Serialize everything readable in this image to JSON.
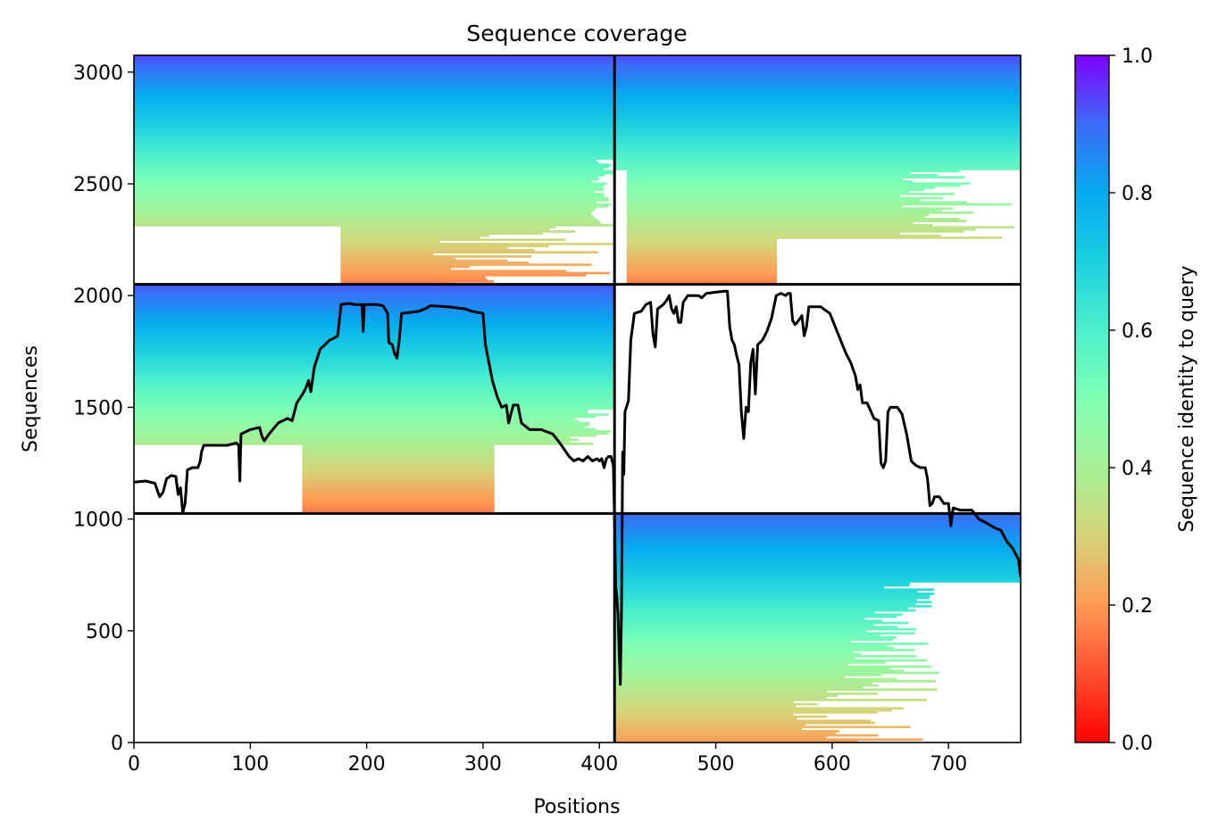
{
  "chart_data": {
    "type": "heatmap",
    "title": "Sequence coverage",
    "xlabel": "Positions",
    "ylabel": "Sequences",
    "xlim": [
      0,
      762
    ],
    "ylim": [
      0,
      3075
    ],
    "x_ticks": [
      0,
      100,
      200,
      300,
      400,
      500,
      600,
      700
    ],
    "y_ticks": [
      0,
      500,
      1000,
      1500,
      2000,
      2500,
      3000
    ],
    "colormap": "rainbow_r",
    "colorbar": {
      "label": "Sequence identity to query",
      "range": [
        0.0,
        1.0
      ],
      "ticks": [
        "0.0",
        "0.2",
        "0.4",
        "0.6",
        "0.8",
        "1.0"
      ]
    },
    "block_divisions": {
      "x_split": 413,
      "y_splits": [
        1025,
        2050
      ]
    },
    "blocks": [
      {
        "x_range": [
          0,
          413
        ],
        "y_range": [
          2050,
          3075
        ],
        "identity_top": 0.93,
        "identity_bottom": 0.17
      },
      {
        "x_range": [
          413,
          762
        ],
        "y_range": [
          2050,
          3075
        ],
        "identity_top": 0.93,
        "identity_bottom": 0.17
      },
      {
        "x_range": [
          0,
          413
        ],
        "y_range": [
          1025,
          2050
        ],
        "identity_top": 0.92,
        "identity_bottom": 0.16
      },
      {
        "x_range": [
          413,
          762
        ],
        "y_range": [
          0,
          1025
        ],
        "identity_top": 0.9,
        "identity_bottom": 0.21
      }
    ],
    "coverage_line": {
      "color": "#000000",
      "points": [
        [
          0,
          1165
        ],
        [
          10,
          1170
        ],
        [
          18,
          1160
        ],
        [
          22,
          1100
        ],
        [
          25,
          1120
        ],
        [
          28,
          1180
        ],
        [
          32,
          1195
        ],
        [
          36,
          1190
        ],
        [
          38,
          1110
        ],
        [
          40,
          1140
        ],
        [
          42,
          1030
        ],
        [
          44,
          1070
        ],
        [
          46,
          1220
        ],
        [
          50,
          1230
        ],
        [
          55,
          1230
        ],
        [
          57,
          1260
        ],
        [
          58,
          1300
        ],
        [
          60,
          1330
        ],
        [
          70,
          1330
        ],
        [
          80,
          1330
        ],
        [
          88,
          1340
        ],
        [
          90,
          1330
        ],
        [
          91,
          1170
        ],
        [
          92,
          1380
        ],
        [
          100,
          1400
        ],
        [
          108,
          1410
        ],
        [
          110,
          1370
        ],
        [
          112,
          1350
        ],
        [
          116,
          1380
        ],
        [
          124,
          1430
        ],
        [
          132,
          1450
        ],
        [
          136,
          1440
        ],
        [
          140,
          1520
        ],
        [
          145,
          1560
        ],
        [
          148,
          1590
        ],
        [
          150,
          1620
        ],
        [
          152,
          1570
        ],
        [
          155,
          1680
        ],
        [
          160,
          1760
        ],
        [
          168,
          1800
        ],
        [
          172,
          1810
        ],
        [
          175,
          1820
        ],
        [
          178,
          1960
        ],
        [
          185,
          1965
        ],
        [
          190,
          1960
        ],
        [
          196,
          1960
        ],
        [
          197,
          1840
        ],
        [
          198,
          1960
        ],
        [
          208,
          1960
        ],
        [
          214,
          1955
        ],
        [
          218,
          1920
        ],
        [
          219,
          1790
        ],
        [
          222,
          1780
        ],
        [
          224,
          1740
        ],
        [
          226,
          1720
        ],
        [
          228,
          1800
        ],
        [
          230,
          1920
        ],
        [
          245,
          1930
        ],
        [
          250,
          1940
        ],
        [
          255,
          1955
        ],
        [
          270,
          1950
        ],
        [
          285,
          1940
        ],
        [
          290,
          1930
        ],
        [
          300,
          1920
        ],
        [
          302,
          1780
        ],
        [
          305,
          1700
        ],
        [
          308,
          1620
        ],
        [
          312,
          1550
        ],
        [
          316,
          1500
        ],
        [
          320,
          1510
        ],
        [
          322,
          1430
        ],
        [
          326,
          1510
        ],
        [
          330,
          1510
        ],
        [
          333,
          1430
        ],
        [
          340,
          1400
        ],
        [
          350,
          1400
        ],
        [
          360,
          1380
        ],
        [
          366,
          1340
        ],
        [
          370,
          1310
        ],
        [
          374,
          1280
        ],
        [
          378,
          1260
        ],
        [
          382,
          1270
        ],
        [
          386,
          1260
        ],
        [
          390,
          1280
        ],
        [
          394,
          1260
        ],
        [
          398,
          1270
        ],
        [
          400,
          1260
        ],
        [
          402,
          1270
        ],
        [
          404,
          1230
        ],
        [
          406,
          1270
        ],
        [
          408,
          1280
        ],
        [
          410,
          1280
        ],
        [
          412,
          1240
        ],
        [
          413,
          1000
        ],
        [
          414,
          700
        ],
        [
          415,
          650
        ],
        [
          416,
          570
        ],
        [
          417,
          400
        ],
        [
          418,
          260
        ],
        [
          419,
          600
        ],
        [
          420,
          1300
        ],
        [
          421,
          1200
        ],
        [
          422,
          1480
        ],
        [
          425,
          1530
        ],
        [
          427,
          1800
        ],
        [
          430,
          1920
        ],
        [
          436,
          1930
        ],
        [
          440,
          1960
        ],
        [
          444,
          1970
        ],
        [
          446,
          1830
        ],
        [
          448,
          1770
        ],
        [
          450,
          1940
        ],
        [
          455,
          1960
        ],
        [
          458,
          1980
        ],
        [
          460,
          2000
        ],
        [
          462,
          1940
        ],
        [
          464,
          1920
        ],
        [
          466,
          1950
        ],
        [
          468,
          1880
        ],
        [
          470,
          1880
        ],
        [
          472,
          1970
        ],
        [
          476,
          2000
        ],
        [
          480,
          2000
        ],
        [
          485,
          2000
        ],
        [
          488,
          1990
        ],
        [
          492,
          2010
        ],
        [
          500,
          2015
        ],
        [
          508,
          2020
        ],
        [
          510,
          2020
        ],
        [
          512,
          1860
        ],
        [
          514,
          1800
        ],
        [
          516,
          1780
        ],
        [
          518,
          1730
        ],
        [
          520,
          1690
        ],
        [
          522,
          1480
        ],
        [
          524,
          1360
        ],
        [
          526,
          1500
        ],
        [
          528,
          1480
        ],
        [
          530,
          1700
        ],
        [
          532,
          1760
        ],
        [
          534,
          1560
        ],
        [
          536,
          1780
        ],
        [
          540,
          1800
        ],
        [
          544,
          1840
        ],
        [
          548,
          1900
        ],
        [
          552,
          2000
        ],
        [
          556,
          2010
        ],
        [
          560,
          2000
        ],
        [
          562,
          2010
        ],
        [
          564,
          2010
        ],
        [
          566,
          1890
        ],
        [
          568,
          1870
        ],
        [
          570,
          1880
        ],
        [
          574,
          1910
        ],
        [
          576,
          1820
        ],
        [
          578,
          1860
        ],
        [
          580,
          1950
        ],
        [
          590,
          1950
        ],
        [
          598,
          1920
        ],
        [
          605,
          1830
        ],
        [
          612,
          1740
        ],
        [
          616,
          1700
        ],
        [
          620,
          1640
        ],
        [
          622,
          1580
        ],
        [
          624,
          1600
        ],
        [
          626,
          1520
        ],
        [
          630,
          1520
        ],
        [
          636,
          1450
        ],
        [
          640,
          1440
        ],
        [
          642,
          1250
        ],
        [
          644,
          1230
        ],
        [
          646,
          1260
        ],
        [
          648,
          1480
        ],
        [
          650,
          1500
        ],
        [
          656,
          1500
        ],
        [
          660,
          1470
        ],
        [
          664,
          1380
        ],
        [
          668,
          1260
        ],
        [
          672,
          1240
        ],
        [
          676,
          1230
        ],
        [
          680,
          1230
        ],
        [
          682,
          1180
        ],
        [
          684,
          1060
        ],
        [
          686,
          1070
        ],
        [
          688,
          1100
        ],
        [
          692,
          1100
        ],
        [
          696,
          1070
        ],
        [
          700,
          1070
        ],
        [
          702,
          970
        ],
        [
          704,
          1050
        ],
        [
          710,
          1040
        ],
        [
          720,
          1040
        ],
        [
          726,
          1000
        ],
        [
          730,
          990
        ],
        [
          740,
          960
        ],
        [
          745,
          950
        ],
        [
          750,
          900
        ],
        [
          755,
          870
        ],
        [
          760,
          820
        ],
        [
          762,
          740
        ]
      ]
    }
  }
}
